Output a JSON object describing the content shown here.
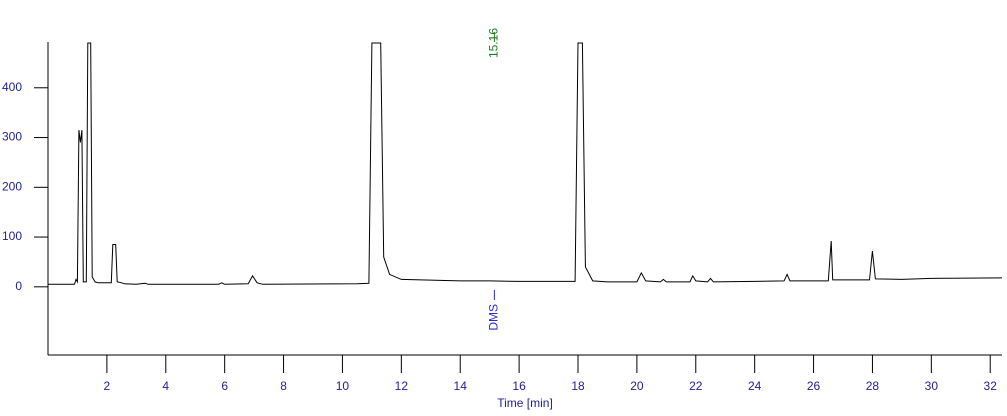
{
  "chart_data": {
    "type": "line",
    "x_label": "Time [min]",
    "x": [
      0,
      0.9,
      0.95,
      1.0,
      1.05,
      1.1,
      1.15,
      1.2,
      1.3,
      1.35,
      1.45,
      1.5,
      1.6,
      1.7,
      2.15,
      2.2,
      2.3,
      2.35,
      2.5,
      2.6,
      3,
      3.3,
      3.4,
      5.8,
      5.9,
      6,
      6.8,
      6.95,
      7.1,
      7.3,
      10.5,
      10.9,
      11.0,
      11.3,
      11.4,
      11.6,
      12,
      14,
      15,
      16,
      17,
      17.9,
      18.0,
      18.15,
      18.25,
      18.5,
      19,
      20,
      20.15,
      20.3,
      20.8,
      20.9,
      21,
      21.8,
      21.9,
      22,
      22.4,
      22.5,
      22.6,
      24,
      25,
      25.1,
      25.2,
      26.5,
      26.6,
      26.65,
      27.9,
      28,
      28.1,
      29,
      30,
      32.4
    ],
    "series": [
      {
        "color": "#000000",
        "values": [
          5,
          5,
          15,
          10,
          315,
          290,
          315,
          10,
          10,
          490,
          490,
          20,
          10,
          8,
          8,
          85,
          85,
          10,
          8,
          6,
          5,
          7,
          5,
          5,
          8,
          5,
          6,
          22,
          8,
          5,
          6,
          7,
          490,
          490,
          60,
          25,
          15,
          12,
          12,
          11,
          11,
          11,
          490,
          490,
          40,
          12,
          10,
          10,
          28,
          12,
          10,
          15,
          10,
          10,
          22,
          12,
          10,
          17,
          10,
          11,
          12,
          25,
          12,
          12,
          92,
          14,
          14,
          72,
          16,
          15,
          17,
          18
        ]
      }
    ],
    "xlim": [
      0,
      32.4
    ],
    "ylim": [
      -137,
      492
    ],
    "xticks": [
      2,
      4,
      6,
      8,
      10,
      12,
      14,
      16,
      18,
      20,
      22,
      24,
      26,
      28,
      30,
      32
    ],
    "yticks": [
      0,
      100,
      200,
      300,
      400
    ],
    "annotations": [
      {
        "text": "15.16",
        "x": 15.16,
        "color": "#1e7a1e",
        "position": "top"
      },
      {
        "text": "DMS",
        "x": 15.16,
        "color": "#2a2ad0",
        "position": "bottom"
      }
    ]
  }
}
